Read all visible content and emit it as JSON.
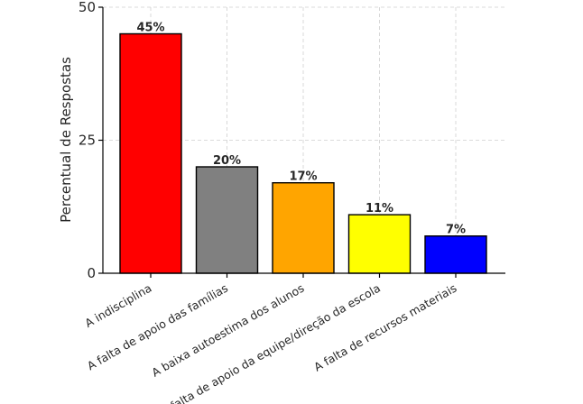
{
  "chart_data": {
    "type": "bar",
    "title": "",
    "xlabel": "",
    "ylabel": "Percentual de Respostas",
    "ylim": [
      0,
      50
    ],
    "yticks": [
      0,
      25,
      50
    ],
    "grid": true,
    "categories": [
      "A indisciplina",
      "A falta de apoio das famílias",
      "A baixa autoestima dos alunos",
      "A falta de apoio da equipe/direção da escola",
      "A falta de recursos materiais"
    ],
    "values": [
      45,
      20,
      17,
      11,
      7
    ],
    "data_labels": [
      "45%",
      "20%",
      "17%",
      "11%",
      "7%"
    ],
    "colors": [
      "#ff0000",
      "#808080",
      "#ffa500",
      "#ffff00",
      "#0000ff"
    ]
  }
}
